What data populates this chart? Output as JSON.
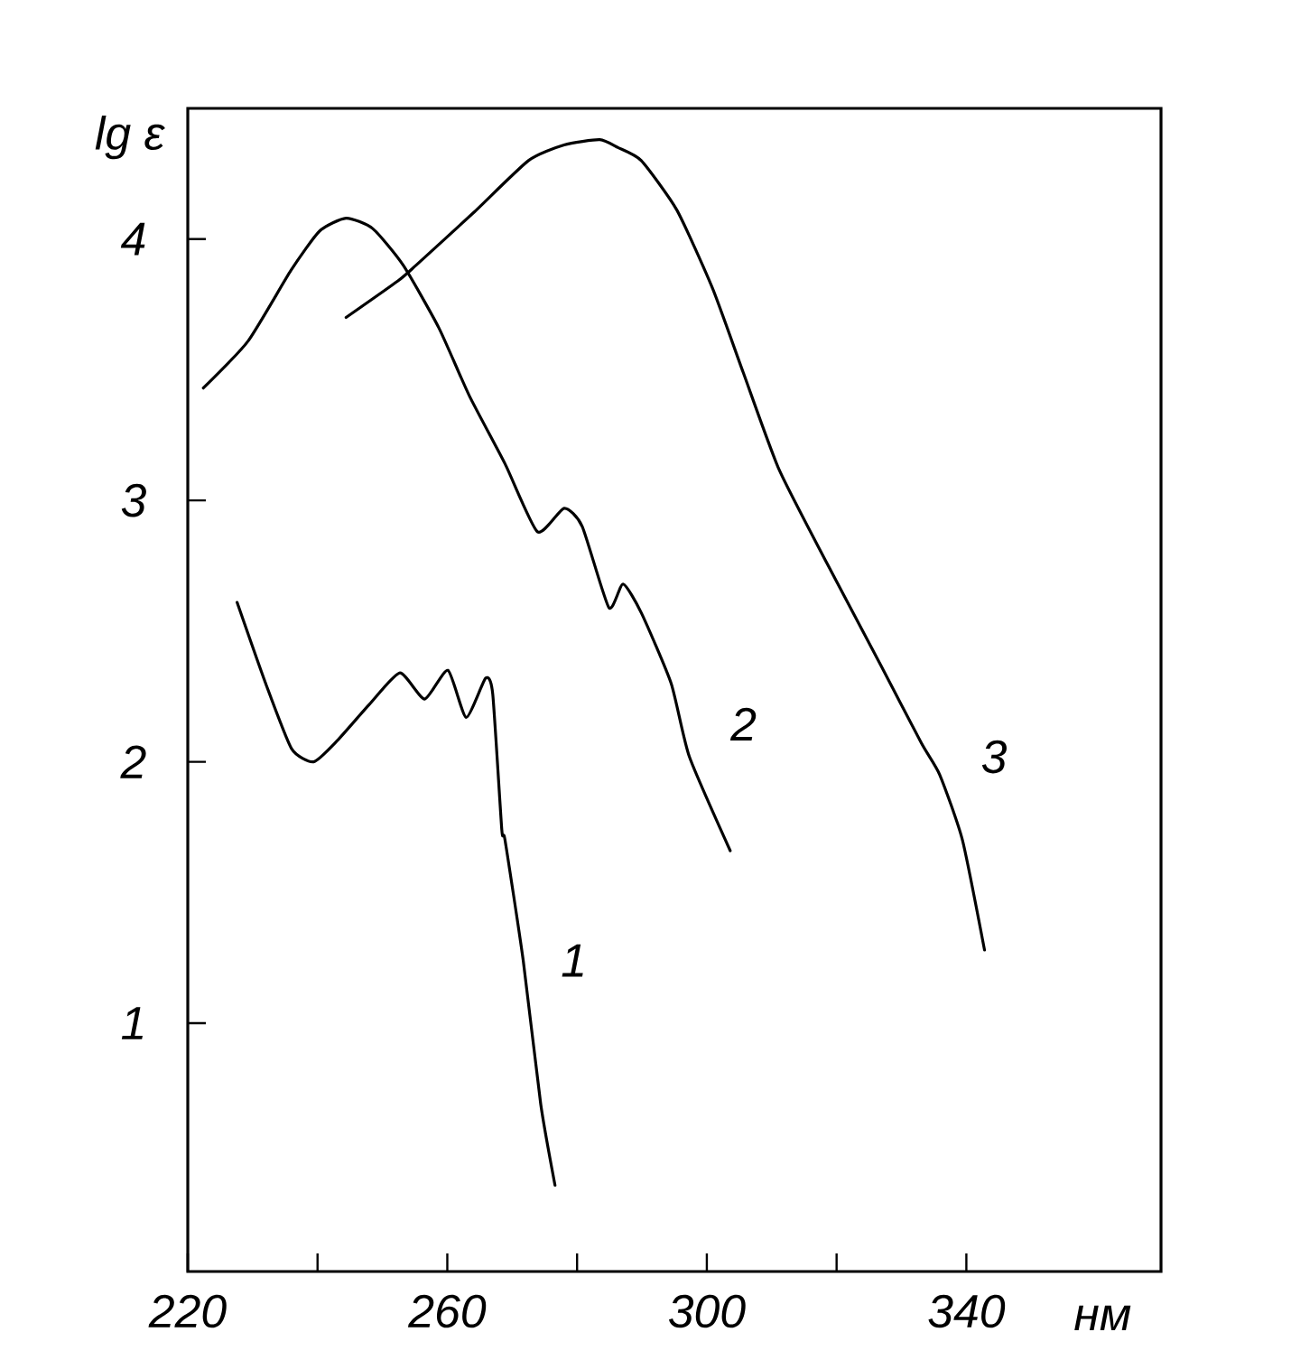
{
  "chart_data": {
    "type": "line",
    "xlabel": "нм",
    "ylabel": "lg ε",
    "xlim": [
      220,
      370
    ],
    "ylim": [
      0.05,
      4.5
    ],
    "xticks": [
      220,
      {
        "value": 240,
        "label": null
      },
      260,
      {
        "value": 280,
        "label": null
      },
      300,
      {
        "value": 320,
        "label": null
      },
      340
    ],
    "yticks": [
      1,
      2,
      3,
      4
    ],
    "line_style": "solid",
    "series": [
      {
        "name": "1",
        "color": "#000000",
        "x": [
          227.6,
          232,
          236,
          239.4,
          243,
          248,
          252.7,
          256.5,
          260.1,
          262.9,
          265.9,
          267,
          268.4,
          268.9,
          271.7,
          274.4,
          276.6
        ],
        "values": [
          2.61,
          2.3,
          2.05,
          2.0,
          2.08,
          2.22,
          2.34,
          2.24,
          2.35,
          2.17,
          2.32,
          2.26,
          1.74,
          1.7,
          1.24,
          0.69,
          0.38
        ]
      },
      {
        "name": "2",
        "color": "#000000",
        "x": [
          222.4,
          229.3,
          235.9,
          240.3,
          244.4,
          248.5,
          253.2,
          258.7,
          263.4,
          268.9,
          273.9,
          278,
          280.8,
          284.9,
          287.1,
          289.9,
          294.5,
          297.3,
          303.6
        ],
        "values": [
          3.43,
          3.61,
          3.88,
          4.03,
          4.08,
          4.04,
          3.9,
          3.66,
          3.4,
          3.14,
          2.88,
          2.97,
          2.9,
          2.59,
          2.68,
          2.57,
          2.3,
          2.02,
          1.66
        ]
      },
      {
        "name": "3",
        "color": "#000000",
        "x": [
          244.4,
          252.4,
          255.2,
          264,
          272.5,
          278,
          283.5,
          286.3,
          289.9,
          295.4,
          300.9,
          305.6,
          311.1,
          318.5,
          326.8,
          333.1,
          335.9,
          339.4,
          342.8
        ],
        "values": [
          3.7,
          3.84,
          3.9,
          4.1,
          4.3,
          4.36,
          4.38,
          4.35,
          4.3,
          4.11,
          3.81,
          3.49,
          3.12,
          2.76,
          2.37,
          2.07,
          1.95,
          1.7,
          1.28
        ]
      }
    ]
  }
}
